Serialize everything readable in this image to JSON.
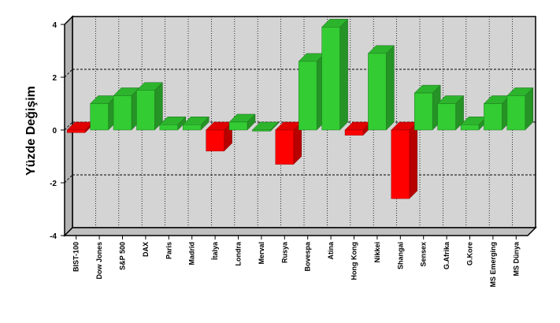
{
  "chart_data": {
    "type": "bar",
    "title": "",
    "xlabel": "",
    "ylabel": "Yüzde Değişim",
    "ylim": [
      -4,
      4
    ],
    "yticks": [
      -4,
      -2,
      0,
      2,
      4
    ],
    "grid": true,
    "legend": "none",
    "style": "3d",
    "categories": [
      "BIST-100",
      "Dow Jones",
      "S&P 500",
      "DAX",
      "Paris",
      "Madrid",
      "İtalya",
      "Londra",
      "Merval",
      "Rusya",
      "Bovespa",
      "Atina",
      "Hong Kong",
      "Nikkei",
      "Shangai",
      "Sensex",
      "G.Afrika",
      "G.Kore",
      "MS Emerging",
      "MS Dünya"
    ],
    "values": [
      -0.1,
      1.0,
      1.3,
      1.5,
      0.2,
      0.2,
      -0.8,
      0.3,
      0.0,
      -1.3,
      2.6,
      3.9,
      -0.2,
      2.9,
      -2.6,
      1.4,
      1.0,
      0.2,
      1.0,
      1.3
    ]
  },
  "colors": {
    "positive": "#33cc33",
    "negative": "#ff0000",
    "plot_back": "#d4d4d4",
    "plot_left_wall": "#b3b3b3",
    "plot_floor": "#c0c0c0"
  }
}
